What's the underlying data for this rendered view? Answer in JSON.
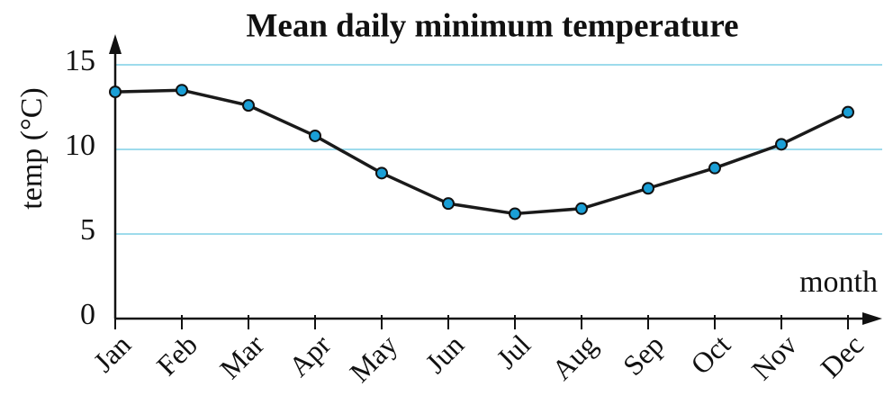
{
  "chart_data": {
    "type": "line",
    "title": "Mean daily minimum temperature",
    "xlabel": "month",
    "ylabel": "temp (°C)",
    "categories": [
      "Jan",
      "Feb",
      "Mar",
      "Apr",
      "May",
      "Jun",
      "Jul",
      "Aug",
      "Sep",
      "Oct",
      "Nov",
      "Dec"
    ],
    "series": [
      {
        "name": "Mean daily minimum temperature",
        "color": "#1a1a1a",
        "marker_color": "#1a9fd6",
        "values": [
          13.4,
          13.5,
          12.6,
          10.8,
          8.6,
          6.8,
          6.2,
          6.5,
          7.7,
          8.9,
          10.3,
          12.2
        ]
      }
    ],
    "ylim": [
      0,
      15
    ],
    "yticks": [
      0,
      5,
      10,
      15
    ],
    "grid": true,
    "grid_color": "#7fcfe6"
  }
}
